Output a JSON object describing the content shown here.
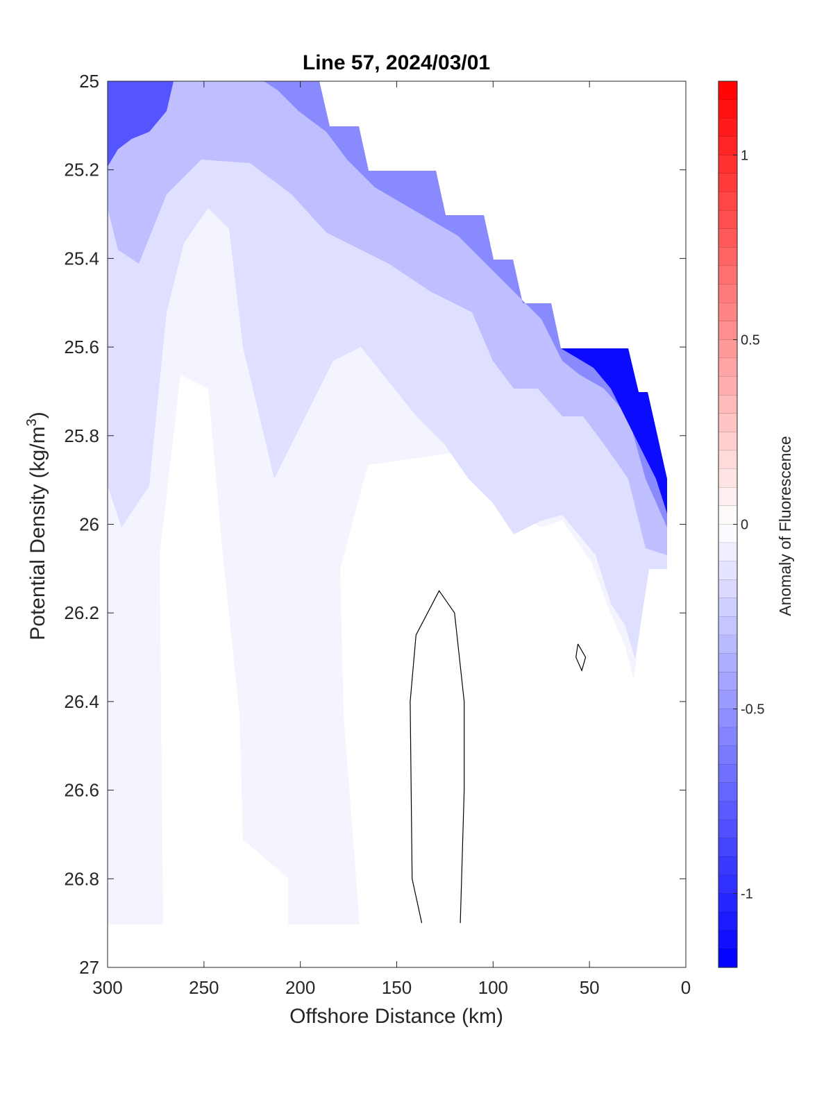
{
  "chart_data": {
    "type": "contour",
    "title": "Line 57, 2024/03/01",
    "xlabel": "Offshore Distance (km)",
    "ylabel_prefix": "Potential Density (kg/m",
    "ylabel_superscript": "3",
    "ylabel_suffix": ")",
    "xlim": [
      0,
      300
    ],
    "x_reversed": true,
    "ylim": [
      25,
      27
    ],
    "y_reversed": true,
    "x_ticks": [
      "300",
      "250",
      "200",
      "150",
      "100",
      "50",
      "0"
    ],
    "y_ticks": [
      "25",
      "25.2",
      "25.4",
      "25.6",
      "25.8",
      "26",
      "26.2",
      "26.4",
      "26.6",
      "26.8",
      "27"
    ],
    "colorbar": {
      "label": "Anomaly of Fluorescence",
      "range": [
        -1.2,
        1.2
      ],
      "levels": 48,
      "ticks": [
        "1",
        "0.5",
        "0",
        "-0.5",
        "-1"
      ],
      "negative_color": "#0000ff",
      "zero_color": "#ffffff",
      "positive_color": "#ff0000"
    },
    "data_extent": {
      "shallow_boundary_steps": [
        [
          300,
          25.0
        ],
        [
          190,
          25.0
        ],
        [
          185,
          25.1
        ],
        [
          170,
          25.1
        ],
        [
          165,
          25.2
        ],
        [
          135,
          25.2
        ],
        [
          125,
          25.3
        ],
        [
          115,
          25.3
        ],
        [
          105,
          25.4
        ],
        [
          95,
          25.4
        ],
        [
          90,
          25.5
        ],
        [
          78,
          25.5
        ],
        [
          65,
          25.6
        ],
        [
          25,
          25.6
        ],
        [
          25,
          25.7
        ],
        [
          15,
          25.7
        ],
        [
          5,
          25.9
        ]
      ],
      "deepest_density": 26.9
    },
    "anomaly_regions": [
      {
        "level": -0.05,
        "note": "widespread weak negative anomaly"
      },
      {
        "level": -0.15,
        "note": "mid-layer band"
      },
      {
        "level": -0.3,
        "note": "upper layer"
      },
      {
        "level": -0.55,
        "note": "near sloping upper boundary"
      },
      {
        "level": -0.8,
        "note": "shallowest offshore and inshore edges"
      },
      {
        "level": -1.15,
        "note": "inshore corner near 5-25 km, density 25.6-25.9"
      }
    ],
    "zero_contours": [
      {
        "x": [
          137,
          142,
          143,
          141,
          140,
          128,
          120,
          115,
          115,
          117
        ],
        "y": [
          26.9,
          26.8,
          26.4,
          26.3,
          26.25,
          26.15,
          26.2,
          26.4,
          26.6,
          26.9
        ]
      },
      {
        "x": [
          56,
          52,
          54,
          57,
          56
        ],
        "y": [
          26.27,
          26.3,
          26.33,
          26.3,
          26.27
        ]
      }
    ]
  }
}
